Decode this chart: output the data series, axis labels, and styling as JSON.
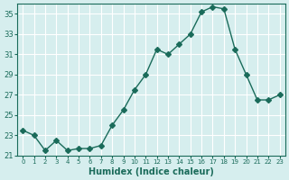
{
  "x": [
    0,
    1,
    2,
    3,
    4,
    5,
    6,
    7,
    8,
    9,
    10,
    11,
    12,
    13,
    14,
    15,
    16,
    17,
    18,
    19,
    20,
    21,
    22,
    23
  ],
  "y": [
    23.5,
    23.0,
    21.5,
    22.5,
    21.5,
    21.7,
    21.7,
    22.0,
    24.0,
    25.5,
    27.5,
    29.0,
    31.5,
    31.0,
    32.0,
    33.0,
    35.2,
    35.7,
    35.5,
    31.5,
    29.0,
    26.5,
    26.5,
    27.0
  ],
  "line_color": "#1a6b5a",
  "marker": "D",
  "marker_size": 3,
  "bg_color": "#d6eeee",
  "grid_color": "#ffffff",
  "xlabel": "Humidex (Indice chaleur)",
  "ylim": [
    21,
    36
  ],
  "xlim": [
    -0.5,
    23.5
  ],
  "yticks": [
    21,
    23,
    25,
    27,
    29,
    31,
    33,
    35
  ],
  "xtick_labels": [
    "0",
    "1",
    "2",
    "3",
    "4",
    "5",
    "6",
    "7",
    "8",
    "9",
    "10",
    "11",
    "12",
    "13",
    "14",
    "15",
    "16",
    "17",
    "18",
    "19",
    "20",
    "21",
    "22",
    "23"
  ],
  "axis_color": "#1a6b5a",
  "tick_color": "#1a6b5a",
  "font_color": "#1a6b5a"
}
